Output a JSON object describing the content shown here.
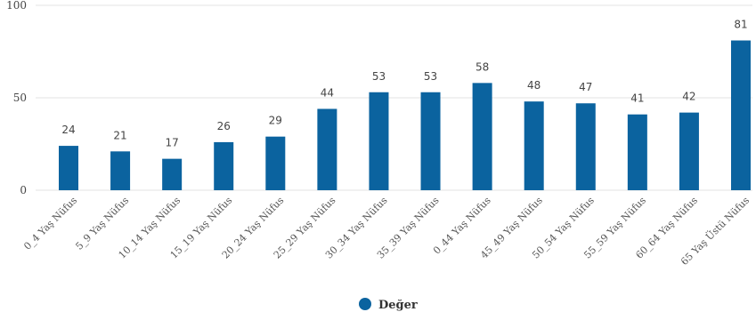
{
  "chart_data": {
    "type": "bar",
    "categories": [
      "0_4 Yaş Nüfus",
      "5_9 Yaş Nüfus",
      "10_14 Yaş Nüfus",
      "15_19 Yaş Nüfus",
      "20_24 Yaş Nüfus",
      "25_29 Yaş Nüfus",
      "30_34 Yaş Nüfus",
      "35_39 Yaş Nüfus",
      "0_44 Yaş Nüfus",
      "45_49 Yaş Nüfus",
      "50_54 Yaş Nüfus",
      "55_59 Yaş Nüfus",
      "60_64 Yaş Nüfus",
      "65 Yaş Üstü Nüfus"
    ],
    "series": [
      {
        "name": "Değer",
        "values": [
          24,
          21,
          17,
          26,
          29,
          44,
          53,
          53,
          58,
          48,
          47,
          41,
          42,
          81
        ]
      }
    ],
    "ylim": [
      0,
      100
    ],
    "yticks": [
      "0",
      "50",
      "100"
    ],
    "grid": true,
    "legend_position": "bottom",
    "bar_color": "#0b639f",
    "grid_color": "#e3e3e3"
  }
}
